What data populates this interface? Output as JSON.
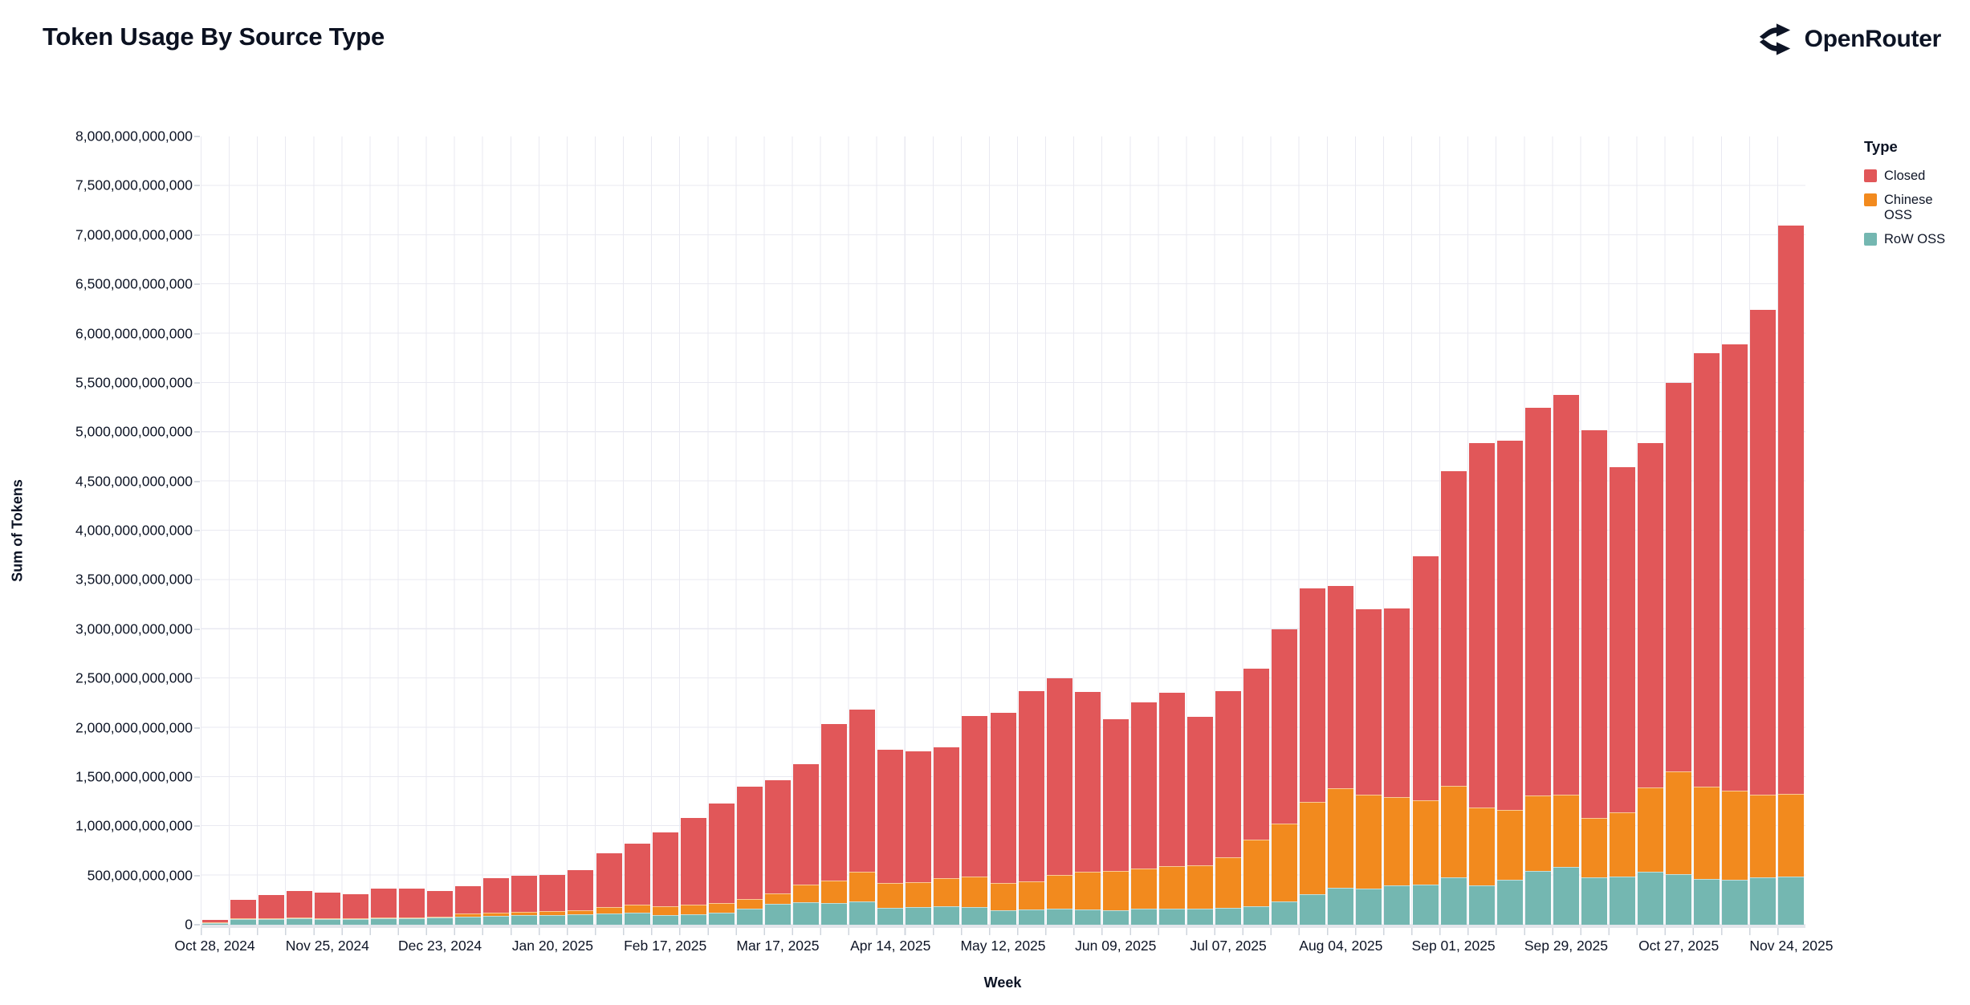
{
  "header": {
    "title": "Token Usage By Source Type",
    "brand": "OpenRouter"
  },
  "chart_data": {
    "type": "bar",
    "stacked": true,
    "title": "Token Usage By Source Type",
    "xlabel": "Week",
    "ylabel": "Sum of Tokens",
    "unit": "tokens",
    "values_in": "billions_of_tokens",
    "ylim": [
      0,
      8000000000000
    ],
    "ytick_step": 500000000000,
    "grid": true,
    "ytick_labels": [
      "0",
      "500,000,000,000",
      "1,000,000,000,000",
      "1,500,000,000,000",
      "2,000,000,000,000",
      "2,500,000,000,000",
      "3,000,000,000,000",
      "3,500,000,000,000",
      "4,000,000,000,000",
      "4,500,000,000,000",
      "5,000,000,000,000",
      "5,500,000,000,000",
      "6,000,000,000,000",
      "6,500,000,000,000",
      "7,000,000,000,000",
      "7,500,000,000,000",
      "8,000,000,000,000"
    ],
    "xtick_every": 4,
    "xtick_labels": [
      "Oct 28, 2024",
      "Nov 25, 2024",
      "Dec 23, 2024",
      "Jan 20, 2025",
      "Feb 17, 2025",
      "Mar 17, 2025",
      "Apr 14, 2025",
      "May 12, 2025",
      "Jun 09, 2025",
      "Jul 07, 2025",
      "Aug 04, 2025",
      "Sep 01, 2025",
      "Sep 29, 2025",
      "Oct 27, 2025",
      "Nov 24, 2025"
    ],
    "categories": [
      "Oct 28, 2024",
      "Nov 04, 2024",
      "Nov 11, 2024",
      "Nov 18, 2024",
      "Nov 25, 2024",
      "Dec 02, 2024",
      "Dec 09, 2024",
      "Dec 16, 2024",
      "Dec 23, 2024",
      "Dec 30, 2024",
      "Jan 06, 2025",
      "Jan 13, 2025",
      "Jan 20, 2025",
      "Jan 27, 2025",
      "Feb 03, 2025",
      "Feb 10, 2025",
      "Feb 17, 2025",
      "Feb 24, 2025",
      "Mar 03, 2025",
      "Mar 10, 2025",
      "Mar 17, 2025",
      "Mar 24, 2025",
      "Mar 31, 2025",
      "Apr 07, 2025",
      "Apr 14, 2025",
      "Apr 21, 2025",
      "Apr 28, 2025",
      "May 05, 2025",
      "May 12, 2025",
      "May 19, 2025",
      "May 26, 2025",
      "Jun 02, 2025",
      "Jun 09, 2025",
      "Jun 16, 2025",
      "Jun 23, 2025",
      "Jun 30, 2025",
      "Jul 07, 2025",
      "Jul 14, 2025",
      "Jul 21, 2025",
      "Jul 28, 2025",
      "Aug 04, 2025",
      "Aug 11, 2025",
      "Aug 18, 2025",
      "Aug 25, 2025",
      "Sep 01, 2025",
      "Sep 08, 2025",
      "Sep 15, 2025",
      "Sep 22, 2025",
      "Sep 29, 2025",
      "Oct 06, 2025",
      "Oct 13, 2025",
      "Oct 20, 2025",
      "Oct 27, 2025",
      "Nov 03, 2025",
      "Nov 10, 2025",
      "Nov 17, 2025",
      "Nov 24, 2025"
    ],
    "series_order_bottom_to_top": [
      "RoW OSS",
      "Chinese OSS",
      "Closed"
    ],
    "series": [
      {
        "name": "Closed",
        "color": "#E15759",
        "values_billions": [
          28,
          187,
          234,
          271,
          258,
          240,
          300,
          293,
          263,
          279,
          350,
          364,
          369,
          410,
          545,
          618,
          745,
          874,
          1010,
          1139,
          1155,
          1220,
          1594,
          1640,
          1355,
          1330,
          1327,
          1628,
          1726,
          1927,
          1994,
          1823,
          1538,
          1690,
          1762,
          1503,
          1687,
          1735,
          1972,
          2164,
          2056,
          1878,
          1915,
          2478,
          3191,
          3699,
          3746,
          3942,
          4064,
          3938,
          3503,
          3500,
          3941,
          4397,
          4527,
          4918,
          5773
        ]
      },
      {
        "name": "Chinese OSS",
        "color": "#F28A1E",
        "values_billions": [
          2,
          5,
          6,
          7,
          7,
          7,
          8,
          10,
          12,
          27,
          33,
          33,
          38,
          42,
          68,
          82,
          90,
          100,
          100,
          95,
          103,
          180,
          226,
          300,
          250,
          250,
          283,
          312,
          280,
          291,
          340,
          381,
          397,
          410,
          428,
          441,
          512,
          675,
          794,
          936,
          1009,
          952,
          892,
          851,
          925,
          794,
          707,
          761,
          728,
          598,
          645,
          851,
          1048,
          938,
          903,
          838,
          835
        ]
      },
      {
        "name": "RoW OSS",
        "color": "#74B7B1",
        "values_billions": [
          15,
          58,
          60,
          62,
          60,
          58,
          62,
          62,
          70,
          84,
          92,
          98,
          98,
          103,
          112,
          120,
          100,
          106,
          120,
          166,
          212,
          230,
          220,
          240,
          175,
          180,
          190,
          180,
          144,
          152,
          166,
          155,
          150,
          160,
          166,
          166,
          171,
          190,
          234,
          310,
          375,
          370,
          403,
          411,
          484,
          397,
          457,
          547,
          588,
          484,
          492,
          539,
          511,
          465,
          460,
          484,
          492
        ]
      }
    ],
    "legend": {
      "title": "Type",
      "position": "right",
      "entries": [
        {
          "label": "Closed",
          "color": "#E15759"
        },
        {
          "label": "Chinese OSS",
          "color": "#F28A1E"
        },
        {
          "label": "RoW OSS",
          "color": "#74B7B1"
        }
      ]
    }
  }
}
